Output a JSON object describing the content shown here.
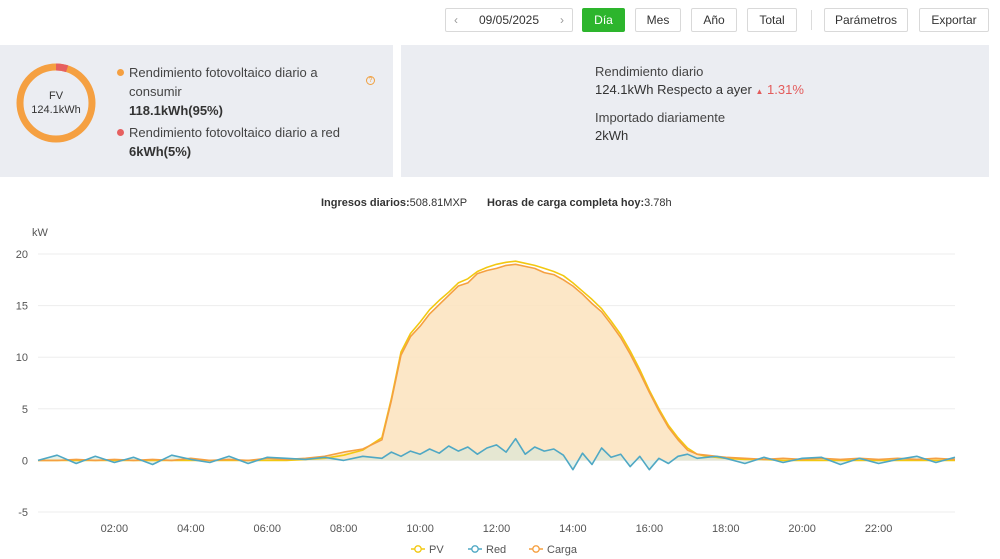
{
  "toolbar": {
    "date": "09/05/2025",
    "tabs": [
      {
        "label": "Día",
        "active": true
      },
      {
        "label": "Mes",
        "active": false
      },
      {
        "label": "Año",
        "active": false
      },
      {
        "label": "Total",
        "active": false
      }
    ],
    "params_label": "Parámetros",
    "export_label": "Exportar"
  },
  "summary_left": {
    "donut_title": "FV",
    "donut_value": "124.1kWh",
    "consume_share": 0.95,
    "consume_label": "Rendimiento fotovoltaico diario a consumir",
    "consume_value": "118.1kWh(95%)",
    "grid_label": "Rendimiento fotovoltaico diario a red",
    "grid_value": "6kWh(5%)",
    "consume_color": "#f5a041",
    "grid_color": "#e66060"
  },
  "summary_right": {
    "yield_label": "Rendimiento diario",
    "yield_value": "124.1kWh",
    "compare_label": "Respecto a ayer",
    "compare_value": "1.31%",
    "compare_arrow": "▲",
    "import_label": "Importado diariamente",
    "import_value": "2kWh"
  },
  "chart_head": {
    "income_label": "Ingresos diarios",
    "income_value": "508.81MXP",
    "hours_label": "Horas de carga completa hoy",
    "hours_value": "3.78h"
  },
  "chart_data": {
    "type": "line",
    "ylabel": "kW",
    "ylim": [
      -5,
      20
    ],
    "yticks": [
      -5,
      0,
      5,
      10,
      15,
      20
    ],
    "xlim": [
      0,
      24
    ],
    "xticks": [
      "02:00",
      "04:00",
      "06:00",
      "08:00",
      "10:00",
      "12:00",
      "14:00",
      "16:00",
      "18:00",
      "20:00",
      "22:00"
    ],
    "grid": true,
    "legend_position": "bottom",
    "x": [
      0,
      0.5,
      1,
      1.5,
      2,
      2.5,
      3,
      3.5,
      4,
      4.5,
      5,
      5.5,
      6,
      6.5,
      7,
      7.5,
      8,
      8.5,
      9,
      9.25,
      9.5,
      9.75,
      10,
      10.25,
      10.5,
      10.75,
      11,
      11.25,
      11.5,
      11.75,
      12,
      12.25,
      12.5,
      12.75,
      13,
      13.25,
      13.5,
      13.75,
      14,
      14.25,
      14.5,
      14.75,
      15,
      15.25,
      15.5,
      15.75,
      16,
      16.25,
      16.5,
      16.75,
      17,
      17.25,
      17.5,
      17.75,
      18,
      18.5,
      19,
      19.5,
      20,
      20.5,
      21,
      21.5,
      22,
      22.5,
      23,
      23.5,
      24
    ],
    "series": [
      {
        "name": "PV",
        "color": "#f2c811",
        "values": [
          0,
          0,
          0,
          0,
          0,
          0,
          0,
          0,
          0,
          0,
          0,
          0,
          0,
          0,
          0.1,
          0.2,
          0.5,
          1.0,
          2.2,
          6.0,
          10.5,
          12.3,
          13.4,
          14.6,
          15.5,
          16.3,
          17.2,
          17.6,
          18.3,
          18.7,
          19.0,
          19.2,
          19.3,
          19.1,
          18.9,
          18.6,
          18.3,
          17.9,
          17.2,
          16.4,
          15.6,
          14.7,
          13.5,
          12.2,
          10.6,
          8.8,
          6.8,
          5.0,
          3.4,
          2.2,
          1.2,
          0.6,
          0.4,
          0.3,
          0.2,
          0.1,
          0.1,
          0,
          0,
          0,
          0,
          0,
          0,
          0,
          0,
          0,
          0
        ]
      },
      {
        "name": "Red",
        "color": "#4fa8c4",
        "values": [
          0,
          0.5,
          -0.3,
          0.4,
          -0.2,
          0.3,
          -0.4,
          0.5,
          0.1,
          -0.2,
          0.4,
          -0.3,
          0.3,
          0.2,
          0.1,
          0.3,
          0,
          0.4,
          0.2,
          0.8,
          0.4,
          0.9,
          0.6,
          1.1,
          0.7,
          1.4,
          0.9,
          1.3,
          0.6,
          1.2,
          1.5,
          0.8,
          2.1,
          0.6,
          1.3,
          0.9,
          1.1,
          0.5,
          -0.9,
          0.7,
          -0.4,
          1.2,
          0.3,
          0.6,
          -0.6,
          0.4,
          -0.9,
          0.2,
          -0.3,
          0.4,
          0.6,
          0.2,
          0.3,
          0.4,
          0.2,
          -0.3,
          0.3,
          -0.2,
          0.2,
          0.3,
          -0.4,
          0.2,
          -0.3,
          0.1,
          0.4,
          -0.2,
          0.3
        ]
      },
      {
        "name": "Carga",
        "color": "#f5a041",
        "values": [
          0,
          0,
          0.1,
          0,
          0.1,
          0,
          0.1,
          0,
          0.2,
          0,
          0.1,
          0,
          0.2,
          0.1,
          0.2,
          0.4,
          0.8,
          1.1,
          2.0,
          5.8,
          10.2,
          12.0,
          13.0,
          14.2,
          15.1,
          16.0,
          16.9,
          17.2,
          18.1,
          18.4,
          18.6,
          18.9,
          19.0,
          18.8,
          18.6,
          18.2,
          18.0,
          17.5,
          16.9,
          16.1,
          15.2,
          14.4,
          13.2,
          11.9,
          10.3,
          8.5,
          6.6,
          4.8,
          3.2,
          2.0,
          1.0,
          0.6,
          0.5,
          0.4,
          0.3,
          0.2,
          0.1,
          0.2,
          0.1,
          0.2,
          0.1,
          0.2,
          0.1,
          0.2,
          0.1,
          0.2,
          0.1
        ]
      }
    ]
  }
}
